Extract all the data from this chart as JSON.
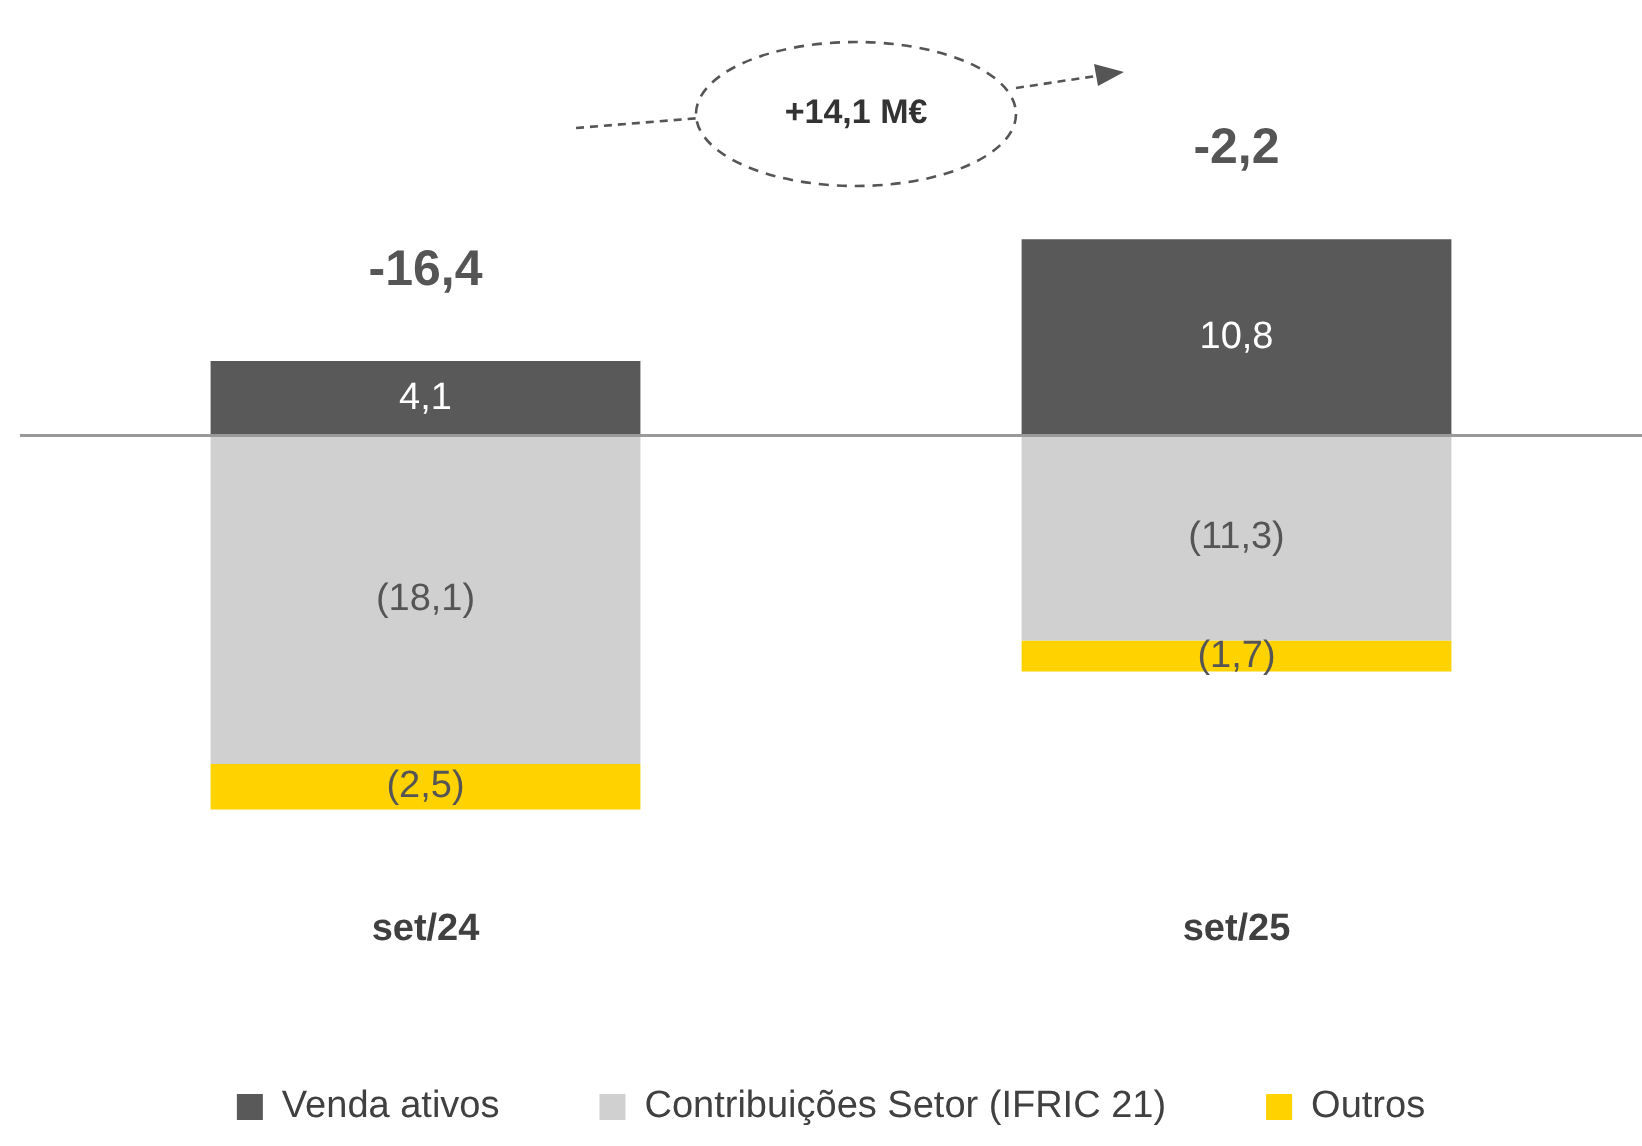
{
  "chart_data": {
    "type": "bar",
    "stacked": true,
    "categories": [
      "set/24",
      "set/25"
    ],
    "series": [
      {
        "name": "Venda ativos",
        "color": "#595959",
        "values": [
          4.1,
          10.8
        ],
        "value_labels": [
          "4,1",
          "10,8"
        ]
      },
      {
        "name": "Contribuições Setor (IFRIC 21)",
        "color": "#d0d0d0",
        "values": [
          -18.1,
          -11.3
        ],
        "value_labels": [
          "(18,1)",
          "(11,3)"
        ]
      },
      {
        "name": "Outros",
        "color": "#ffd200",
        "values": [
          -2.5,
          -1.7
        ],
        "value_labels": [
          "(2,5)",
          "(1,7)"
        ]
      }
    ],
    "totals": [
      "-16,4",
      "-2,2"
    ],
    "annotations": [
      "+14,1 M€"
    ],
    "tick_labels": "x",
    "grid": false,
    "legend": "bottom"
  }
}
